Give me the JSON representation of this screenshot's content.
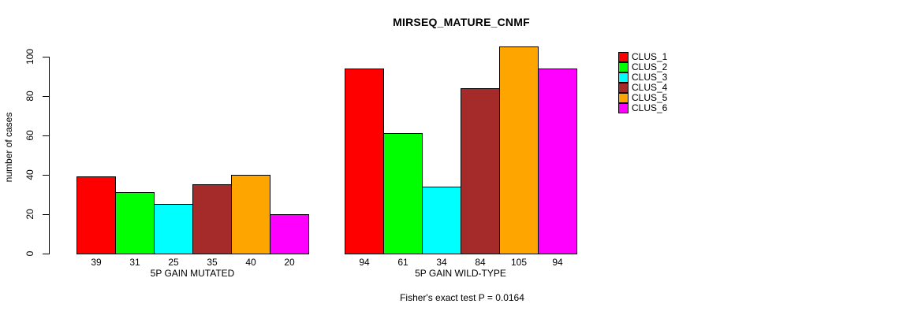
{
  "chart_data": {
    "type": "bar",
    "title": "MIRSEQ_MATURE_CNMF",
    "ylabel": "number of cases",
    "xlabel": "",
    "yticks": [
      0,
      20,
      40,
      60,
      80,
      100
    ],
    "ylim": [
      0,
      105
    ],
    "grid": false,
    "legend_position": "right",
    "legend": [
      {
        "label": "CLUS_1",
        "color": "#ff0000"
      },
      {
        "label": "CLUS_2",
        "color": "#00ff00"
      },
      {
        "label": "CLUS_3",
        "color": "#00ffff"
      },
      {
        "label": "CLUS_4",
        "color": "#a52a2a"
      },
      {
        "label": "CLUS_5",
        "color": "#ffa500"
      },
      {
        "label": "CLUS_6",
        "color": "#ff00ff"
      }
    ],
    "groups": [
      {
        "label": "5P GAIN MUTATED",
        "values": [
          39,
          31,
          25,
          35,
          40,
          20
        ]
      },
      {
        "label": "5P GAIN WILD-TYPE",
        "values": [
          94,
          61,
          34,
          84,
          105,
          94
        ]
      }
    ],
    "annotation": "Fisher's exact test P = 0.0164"
  }
}
